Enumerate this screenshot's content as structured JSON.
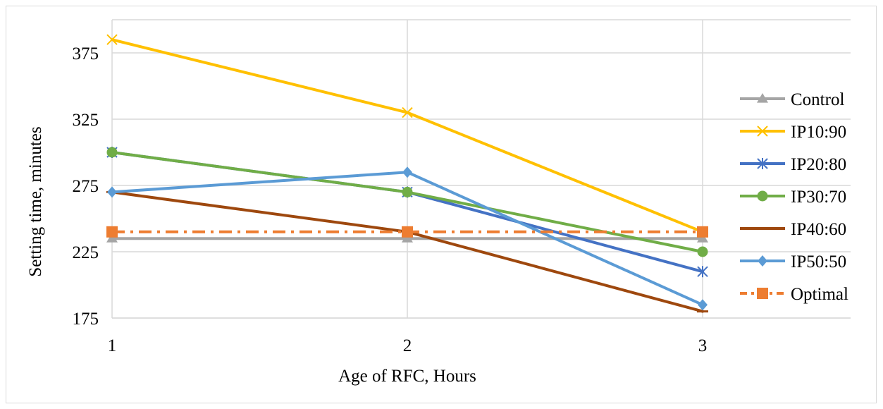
{
  "chart_data": {
    "type": "line",
    "title": "",
    "xlabel": "Age of RFC, Hours",
    "ylabel": "Setting time, minutes",
    "x": [
      1,
      2,
      3
    ],
    "xticks": [
      "1",
      "2",
      "3"
    ],
    "yticks": [
      175,
      225,
      275,
      325,
      375
    ],
    "ylim": [
      175,
      400
    ],
    "grid": true,
    "legend_position": "right",
    "series": [
      {
        "name": "Control",
        "values": [
          235,
          235,
          235
        ],
        "color": "#a5a5a5",
        "marker": "triangle",
        "dash": "solid"
      },
      {
        "name": "IP10:90",
        "values": [
          385,
          330,
          240
        ],
        "color": "#ffc000",
        "marker": "x",
        "dash": "solid"
      },
      {
        "name": "IP20:80",
        "values": [
          300,
          270,
          210
        ],
        "color": "#4472c4",
        "marker": "asterisk",
        "dash": "solid"
      },
      {
        "name": "IP30:70",
        "values": [
          300,
          270,
          225
        ],
        "color": "#70ad47",
        "marker": "circle",
        "dash": "solid"
      },
      {
        "name": "IP40:60",
        "values": [
          270,
          240,
          180
        ],
        "color": "#9e480e",
        "marker": "dash",
        "dash": "solid"
      },
      {
        "name": "IP50:50",
        "values": [
          270,
          285,
          185
        ],
        "color": "#5b9bd5",
        "marker": "diamond",
        "dash": "solid"
      },
      {
        "name": "Optimal",
        "values": [
          240,
          240,
          240
        ],
        "color": "#ed7d31",
        "marker": "square",
        "dash": "dashdot"
      }
    ]
  }
}
